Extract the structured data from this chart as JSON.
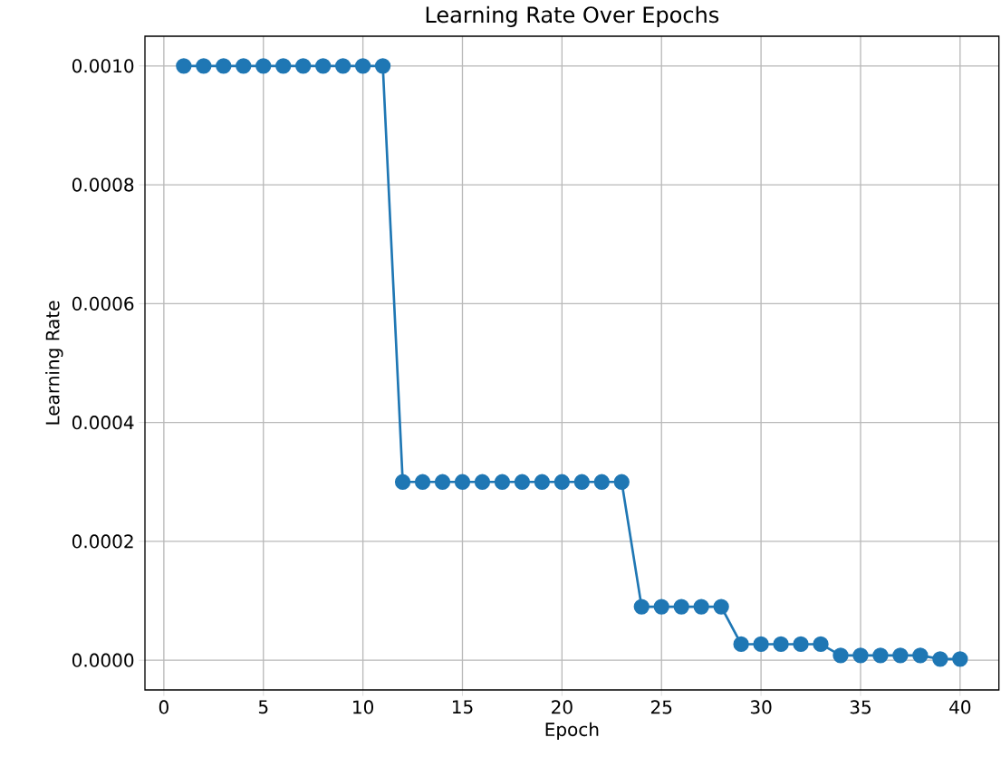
{
  "chart_data": {
    "type": "line",
    "title": "Learning Rate Over Epochs",
    "xlabel": "Epoch",
    "ylabel": "Learning Rate",
    "x": [
      1,
      2,
      3,
      4,
      5,
      6,
      7,
      8,
      9,
      10,
      11,
      12,
      13,
      14,
      15,
      16,
      17,
      18,
      19,
      20,
      21,
      22,
      23,
      24,
      25,
      26,
      27,
      28,
      29,
      30,
      31,
      32,
      33,
      34,
      35,
      36,
      37,
      38,
      39,
      40
    ],
    "values": [
      0.001,
      0.001,
      0.001,
      0.001,
      0.001,
      0.001,
      0.001,
      0.001,
      0.001,
      0.001,
      0.001,
      0.0003,
      0.0003,
      0.0003,
      0.0003,
      0.0003,
      0.0003,
      0.0003,
      0.0003,
      0.0003,
      0.0003,
      0.0003,
      0.0003,
      9e-05,
      9e-05,
      9e-05,
      9e-05,
      9e-05,
      2.7e-05,
      2.7e-05,
      2.7e-05,
      2.7e-05,
      2.7e-05,
      8e-06,
      8e-06,
      8e-06,
      8e-06,
      8e-06,
      2e-06,
      2e-06
    ],
    "color": "#1f77b4",
    "marker": "circle",
    "line_style": "solid",
    "grid": true,
    "xlim": [
      -0.95,
      41.95
    ],
    "ylim": [
      -5e-05,
      0.00105
    ],
    "xticks": [
      0,
      5,
      10,
      15,
      20,
      25,
      30,
      35,
      40
    ],
    "yticks": [
      {
        "value": 0,
        "label": "0.0000"
      },
      {
        "value": 0.0002,
        "label": "0.0002"
      },
      {
        "value": 0.0004,
        "label": "0.0004"
      },
      {
        "value": 0.0006,
        "label": "0.0006"
      },
      {
        "value": 0.0008,
        "label": "0.0008"
      },
      {
        "value": 0.001,
        "label": "0.0010"
      }
    ]
  }
}
